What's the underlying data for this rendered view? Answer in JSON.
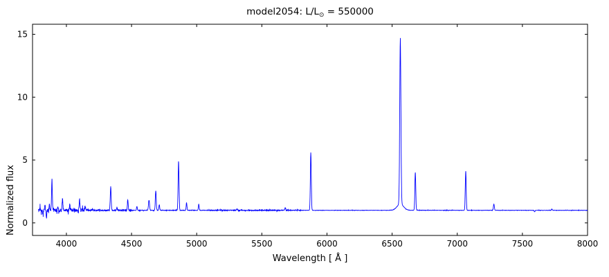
{
  "title": {
    "prefix": "model2054: L/L",
    "sub": "⊙",
    "suffix": " = 550000"
  },
  "chart_data": {
    "type": "line",
    "title": "model2054: L/L⊙ = 550000",
    "xlabel": "Wavelength [ Å ]",
    "ylabel": "Normalized flux",
    "xlim": [
      3740,
      8000
    ],
    "ylim": [
      -1,
      15.8
    ],
    "x_start": 3785,
    "step": 1.5,
    "line_color": "#0000ff",
    "frame_color": "#000000",
    "background": "#ffffff",
    "continuum": 1.0,
    "seed": 42,
    "grid": false,
    "legend": "none",
    "xticks": [
      {
        "value": 4000,
        "label": "4000"
      },
      {
        "value": 4500,
        "label": "4500"
      },
      {
        "value": 5000,
        "label": "5000"
      },
      {
        "value": 5500,
        "label": "5500"
      },
      {
        "value": 6000,
        "label": "6000"
      },
      {
        "value": 6500,
        "label": "6500"
      },
      {
        "value": 7000,
        "label": "7000"
      },
      {
        "value": 7500,
        "label": "7500"
      },
      {
        "value": 8000,
        "label": "8000"
      }
    ],
    "yticks": [
      {
        "value": 0,
        "label": "0"
      },
      {
        "value": 5,
        "label": "5"
      },
      {
        "value": 10,
        "label": "10"
      },
      {
        "value": 15,
        "label": "15"
      }
    ],
    "peaks": [
      {
        "c": 3798,
        "h": 0.25,
        "w": 2.5
      },
      {
        "c": 3835,
        "h": 0.45,
        "w": 2.5
      },
      {
        "c": 3869,
        "h": 0.5,
        "w": 2.5
      },
      {
        "c": 3889,
        "h": 2.45,
        "w": 3
      },
      {
        "c": 3935,
        "h": 0.3,
        "w": 2.5
      },
      {
        "c": 3970,
        "h": 0.85,
        "w": 3
      },
      {
        "c": 4026,
        "h": 0.5,
        "w": 3
      },
      {
        "c": 4101,
        "h": 0.85,
        "w": 3.5
      },
      {
        "c": 4144,
        "h": 0.25,
        "w": 3
      },
      {
        "c": 4340,
        "h": 1.85,
        "w": 3.5
      },
      {
        "c": 4388,
        "h": 0.25,
        "w": 3
      },
      {
        "c": 4471,
        "h": 0.85,
        "w": 3
      },
      {
        "c": 4541,
        "h": 0.3,
        "w": 3
      },
      {
        "c": 4634,
        "h": 0.8,
        "w": 4
      },
      {
        "c": 4686,
        "h": 1.55,
        "w": 3.5
      },
      {
        "c": 4713,
        "h": 0.45,
        "w": 3
      },
      {
        "c": 4861,
        "h": 3.9,
        "w": 3.5
      },
      {
        "c": 4922,
        "h": 0.6,
        "w": 3
      },
      {
        "c": 5016,
        "h": 0.5,
        "w": 3
      },
      {
        "c": 5310,
        "h": 0.12,
        "w": 3
      },
      {
        "c": 5680,
        "h": 0.18,
        "w": 4
      },
      {
        "c": 5876,
        "h": 4.6,
        "w": 3.5
      },
      {
        "c": 6563,
        "h": 13.2,
        "w": 4.5
      },
      {
        "c": 6563,
        "h": 0.5,
        "w": 25
      },
      {
        "c": 6678,
        "h": 3.0,
        "w": 3.5
      },
      {
        "c": 7065,
        "h": 3.1,
        "w": 3.5
      },
      {
        "c": 7281,
        "h": 0.5,
        "w": 3.5
      },
      {
        "c": 7726,
        "h": 0.1,
        "w": 3
      }
    ],
    "dips": [
      {
        "c": 3820,
        "h": -0.35,
        "w": 2
      },
      {
        "c": 3847,
        "h": -0.65,
        "w": 2
      },
      {
        "c": 4090,
        "h": -0.25,
        "w": 2
      },
      {
        "c": 7594,
        "h": -0.12,
        "w": 3
      }
    ],
    "noise_regions": [
      {
        "from": 3780,
        "to": 4150,
        "amp": 0.13
      },
      {
        "from": 4150,
        "to": 4500,
        "amp": 0.06
      },
      {
        "from": 4500,
        "to": 5100,
        "amp": 0.02
      },
      {
        "from": 5100,
        "to": 5800,
        "amp": 0.035
      },
      {
        "from": 5800,
        "to": 8000,
        "amp": 0.012
      }
    ]
  }
}
